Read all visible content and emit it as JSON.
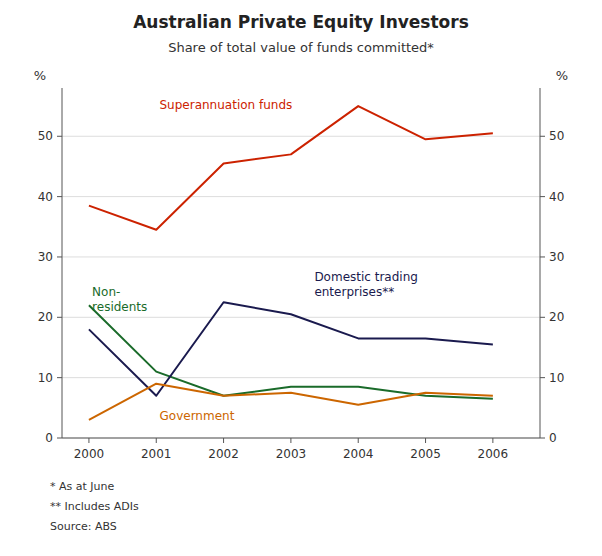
{
  "chart_data": {
    "type": "line",
    "title": "Australian Private Equity Investors",
    "subtitle": "Share of total value of funds committed*",
    "ylabel": "%",
    "y2label": "%",
    "x": [
      2000,
      2001,
      2002,
      2003,
      2004,
      2005,
      2006
    ],
    "series": [
      {
        "name": "Superannuation funds",
        "color": "#cc2200",
        "values": [
          38.5,
          34.5,
          45.5,
          47.0,
          55.0,
          49.5,
          50.5
        ]
      },
      {
        "name": "Non-\nresidents",
        "color": "#1a6b2a",
        "values": [
          22.0,
          11.0,
          7.0,
          8.5,
          8.5,
          7.0,
          6.5
        ]
      },
      {
        "name": "Domestic trading\nenterprises**",
        "color": "#1a1a4e",
        "values": [
          18.0,
          7.0,
          22.5,
          20.5,
          16.5,
          16.5,
          15.5
        ]
      },
      {
        "name": "Government",
        "color": "#cc6600",
        "values": [
          3.0,
          9.0,
          7.0,
          7.5,
          5.5,
          7.5,
          7.0
        ]
      }
    ],
    "xlim": [
      1999.6,
      2006.7
    ],
    "xticks": [
      2000,
      2001,
      2002,
      2003,
      2004,
      2005,
      2006
    ],
    "ylim": [
      0,
      58
    ],
    "yticks": [
      0,
      10,
      20,
      30,
      40,
      50
    ],
    "y2lim": [
      0,
      58
    ],
    "y2ticks": [
      0,
      10,
      20,
      30,
      40,
      50
    ],
    "grid": true,
    "annotations": [
      "*  As at June",
      "** Includes ADIs",
      "Source: ABS"
    ]
  }
}
